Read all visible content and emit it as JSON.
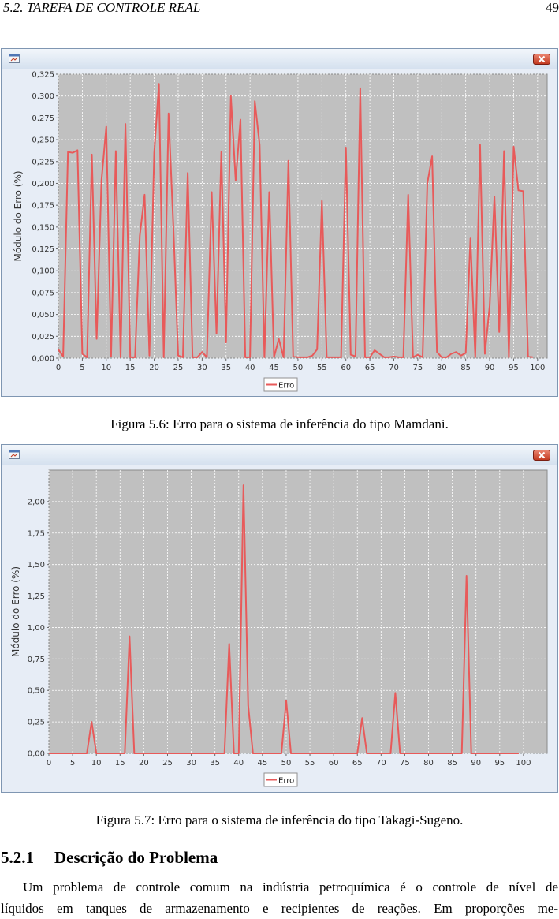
{
  "header": {
    "section_title": "5.2.  TAREFA DE CONTROLE REAL",
    "page_number": "49"
  },
  "colors": {
    "series": "#e85a5a",
    "plot_bg": "#c0c0c0",
    "grid": "#ffffff",
    "window_border": "#7f96b2"
  },
  "icons": {
    "app": "java-app-icon",
    "close": "close-icon"
  },
  "figure1": {
    "caption": "Figura 5.6: Erro para o sistema de inferência do tipo Mamdani.",
    "chart_data": {
      "type": "line",
      "ylabel": "Módulo do Erro (%)",
      "xlim": [
        0,
        102
      ],
      "ylim": [
        0,
        0.325
      ],
      "x_ticks": [
        0,
        5,
        10,
        15,
        20,
        25,
        30,
        35,
        40,
        45,
        50,
        55,
        60,
        65,
        70,
        75,
        80,
        85,
        90,
        95,
        100
      ],
      "y_ticks": [
        0,
        0.025,
        0.05,
        0.075,
        0.1,
        0.125,
        0.15,
        0.175,
        0.2,
        0.225,
        0.25,
        0.275,
        0.3,
        0.325
      ],
      "y_tick_labels": [
        "0,000",
        "0,025",
        "0,050",
        "0,075",
        "0,100",
        "0,125",
        "0,150",
        "0,175",
        "0,200",
        "0,225",
        "0,250",
        "0,275",
        "0,300",
        "0,325"
      ],
      "grid": true,
      "legend": "bottom-center",
      "series": [
        {
          "name": "Erro",
          "x": [
            0,
            1,
            2,
            3,
            4,
            5,
            6,
            7,
            8,
            9,
            10,
            11,
            12,
            13,
            14,
            15,
            16,
            17,
            18,
            19,
            20,
            21,
            22,
            23,
            24,
            25,
            26,
            27,
            28,
            29,
            30,
            31,
            32,
            33,
            34,
            35,
            36,
            37,
            38,
            39,
            40,
            41,
            42,
            43,
            44,
            45,
            46,
            47,
            48,
            49,
            50,
            51,
            52,
            53,
            54,
            55,
            56,
            57,
            58,
            59,
            60,
            61,
            62,
            63,
            64,
            65,
            66,
            67,
            68,
            69,
            70,
            71,
            72,
            73,
            74,
            75,
            76,
            77,
            78,
            79,
            80,
            81,
            82,
            83,
            84,
            85,
            86,
            87,
            88,
            89,
            90,
            91,
            92,
            93,
            94,
            95,
            96,
            97,
            98,
            99
          ],
          "values": [
            0.01,
            0.002,
            0.236,
            0.235,
            0.238,
            0.005,
            0.001,
            0.233,
            0.022,
            0.203,
            0.265,
            0.002,
            0.237,
            0.001,
            0.268,
            0.001,
            0.001,
            0.14,
            0.187,
            0.003,
            0.235,
            0.314,
            0.001,
            0.28,
            0.15,
            0.003,
            0.001,
            0.212,
            0.001,
            0.001,
            0.007,
            0.001,
            0.19,
            0.028,
            0.236,
            0.018,
            0.3,
            0.203,
            0.273,
            0.001,
            0.001,
            0.294,
            0.244,
            0.001,
            0.19,
            0.001,
            0.022,
            0.001,
            0.226,
            0.002,
            0.001,
            0.001,
            0.001,
            0.003,
            0.01,
            0.18,
            0.001,
            0.001,
            0.001,
            0.001,
            0.241,
            0.004,
            0.002,
            0.309,
            0.001,
            0.001,
            0.009,
            0.005,
            0.001,
            0.001,
            0.002,
            0.001,
            0.001,
            0.187,
            0.001,
            0.004,
            0.001,
            0.2,
            0.231,
            0.007,
            0.001,
            0.001,
            0.005,
            0.007,
            0.003,
            0.006,
            0.137,
            0.001,
            0.244,
            0.005,
            0.06,
            0.185,
            0.03,
            0.237,
            0.001,
            0.242,
            0.192,
            0.191,
            0.002,
            0.001
          ]
        }
      ]
    }
  },
  "figure2": {
    "caption": "Figura 5.7: Erro para o sistema de inferência do tipo Takagi-Sugeno.",
    "chart_data": {
      "type": "line",
      "ylabel": "Módulo do Erro (%)",
      "xlim": [
        0,
        105
      ],
      "ylim": [
        0,
        2.25
      ],
      "x_ticks": [
        0,
        5,
        10,
        15,
        20,
        25,
        30,
        35,
        40,
        45,
        50,
        55,
        60,
        65,
        70,
        75,
        80,
        85,
        90,
        95,
        100
      ],
      "y_ticks": [
        0,
        0.25,
        0.5,
        0.75,
        1,
        1.25,
        1.5,
        1.75,
        2
      ],
      "y_tick_labels": [
        "0,00",
        "0,25",
        "0,50",
        "0,75",
        "1,00",
        "1,25",
        "1,50",
        "1,75",
        "2,00"
      ],
      "grid": true,
      "legend": "bottom-center",
      "series": [
        {
          "name": "Erro",
          "x": [
            0,
            8,
            9,
            10,
            16,
            17,
            18,
            37,
            38,
            39,
            40,
            41,
            42,
            43,
            49,
            50,
            51,
            65,
            66,
            67,
            72,
            73,
            74,
            87,
            88,
            89,
            99
          ],
          "values": [
            0,
            0,
            0.25,
            0,
            0,
            0.93,
            0,
            0,
            0.87,
            0,
            0,
            2.13,
            0.38,
            0,
            0,
            0.42,
            0,
            0,
            0.28,
            0,
            0,
            0.48,
            0,
            0,
            1.41,
            0,
            0
          ]
        }
      ]
    }
  },
  "section": {
    "number": "5.2.1",
    "title": "Descrição do Problema",
    "lines": [
      "Um problema de controle comum na indústria petroquímica é o controle de nível de",
      "líquidos em tanques de armazenamento e recipientes de reações.  Em proporções me-"
    ]
  }
}
